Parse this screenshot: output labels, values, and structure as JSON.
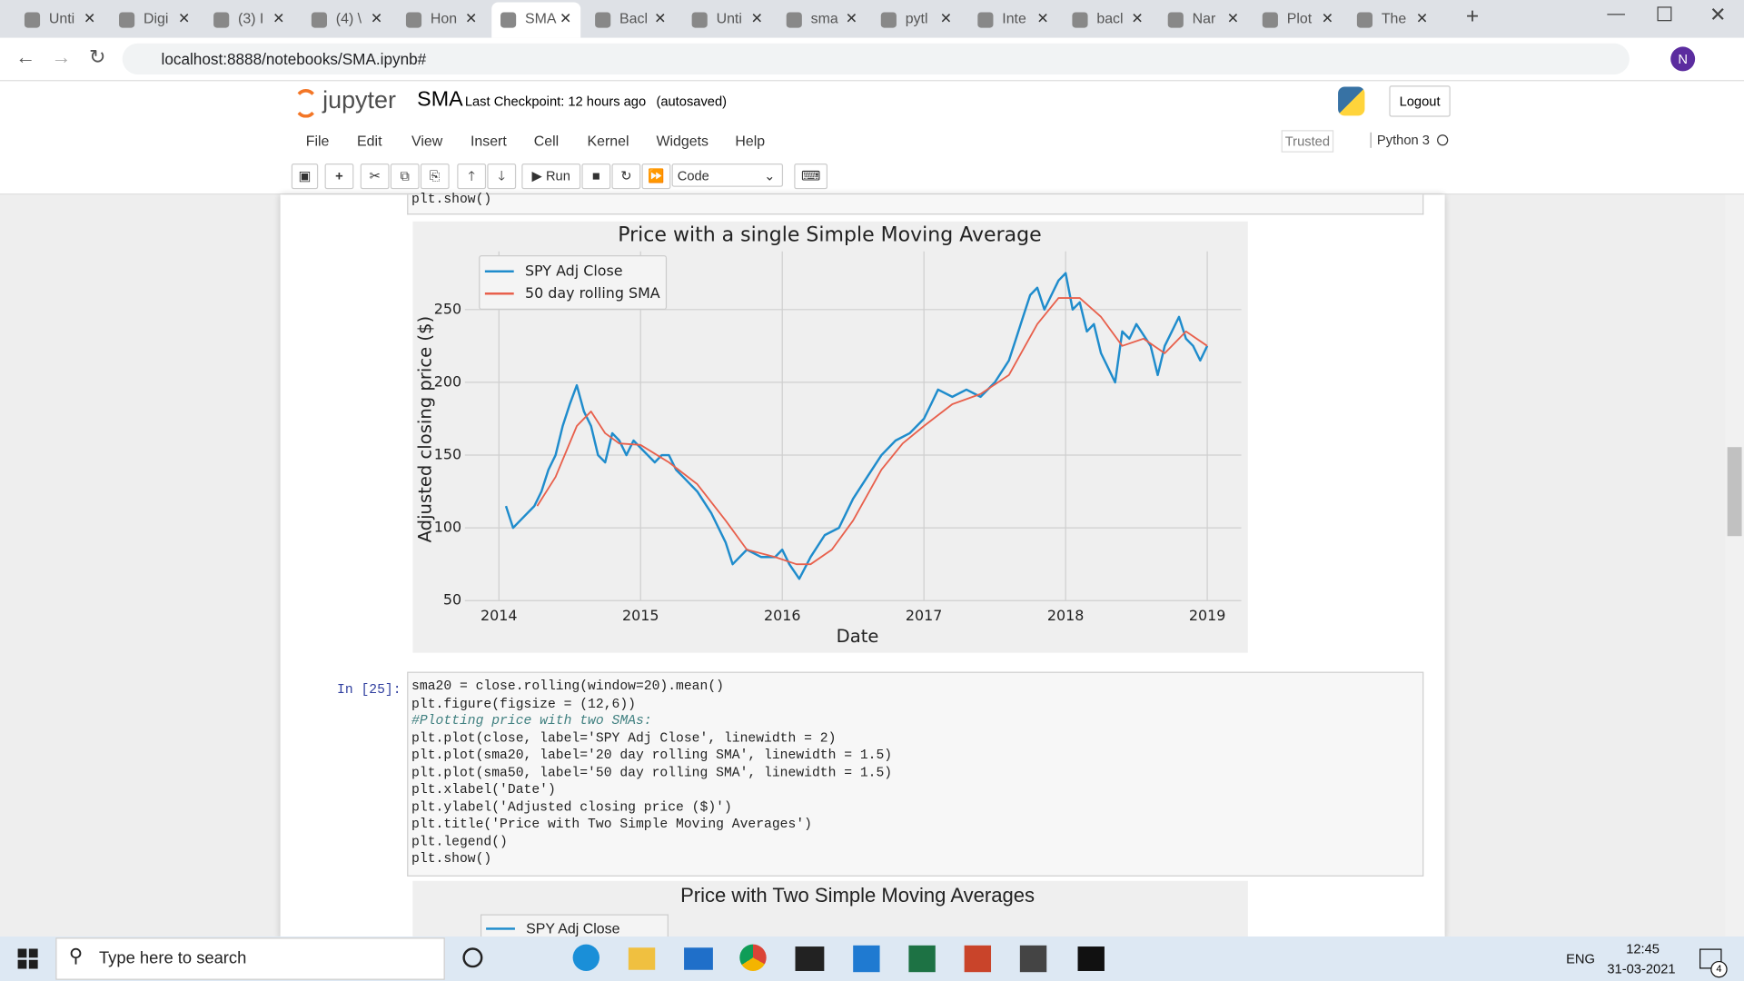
{
  "browser": {
    "tabs": [
      "Unti",
      "Digi",
      "(3) I",
      "(4) \\",
      "Hon",
      "SMA",
      "Bacl",
      "Unti",
      "sma",
      "pytl",
      "Inte",
      "bacl",
      "Nar",
      "Plot",
      "The"
    ],
    "url": "localhost:8888/notebooks/SMA.ipynb#"
  },
  "notebook": {
    "logo": "jupyter",
    "name": "SMA",
    "checkpoint": "Last Checkpoint: 12 hours ago",
    "autosaved": "(autosaved)",
    "logout": "Logout",
    "menu": [
      "File",
      "Edit",
      "View",
      "Insert",
      "Cell",
      "Kernel",
      "Widgets",
      "Help"
    ],
    "trusted": "Trusted",
    "kernel": "Python 3",
    "run": "Run",
    "cell_type": "Code"
  },
  "prev_cell_tail": "plt.show()",
  "chart_data": {
    "type": "line",
    "title": "Price with a single Simple Moving Average",
    "x_label": "Date",
    "y_label": "Adjusted closing price ($)",
    "xlim": [
      2013.76,
      2019.24
    ],
    "xticks": [
      2014,
      2015,
      2016,
      2017,
      2018,
      2019
    ],
    "ylim": [
      50,
      290
    ],
    "yticks": [
      50,
      100,
      150,
      200,
      250
    ],
    "grid": true,
    "legend": "upper left",
    "series": [
      {
        "name": "SPY Adj Close",
        "color": "#1f8ccc",
        "x": [
          2014.05,
          2014.1,
          2014.15,
          2014.25,
          2014.3,
          2014.35,
          2014.4,
          2014.45,
          2014.5,
          2014.55,
          2014.6,
          2014.65,
          2014.7,
          2014.75,
          2014.8,
          2014.85,
          2014.9,
          2014.95,
          2015.0,
          2015.1,
          2015.15,
          2015.2,
          2015.25,
          2015.3,
          2015.4,
          2015.5,
          2015.6,
          2015.65,
          2015.75,
          2015.85,
          2015.95,
          2016.0,
          2016.05,
          2016.12,
          2016.2,
          2016.3,
          2016.4,
          2016.5,
          2016.6,
          2016.7,
          2016.8,
          2016.9,
          2017.0,
          2017.05,
          2017.1,
          2017.2,
          2017.3,
          2017.4,
          2017.5,
          2017.6,
          2017.65,
          2017.7,
          2017.75,
          2017.8,
          2017.85,
          2017.9,
          2017.95,
          2018.0,
          2018.05,
          2018.1,
          2018.15,
          2018.2,
          2018.25,
          2018.3,
          2018.35,
          2018.4,
          2018.45,
          2018.5,
          2018.6,
          2018.65,
          2018.7,
          2018.75,
          2018.8,
          2018.85,
          2018.9,
          2018.95,
          2019.0
        ],
        "values": [
          115,
          100,
          105,
          115,
          125,
          140,
          150,
          170,
          185,
          198,
          180,
          170,
          150,
          145,
          165,
          160,
          150,
          160,
          155,
          145,
          150,
          150,
          140,
          135,
          125,
          110,
          90,
          75,
          85,
          80,
          80,
          85,
          75,
          65,
          80,
          95,
          100,
          120,
          135,
          150,
          160,
          165,
          175,
          185,
          195,
          190,
          195,
          190,
          200,
          215,
          230,
          245,
          260,
          265,
          250,
          260,
          270,
          275,
          250,
          255,
          235,
          240,
          220,
          210,
          200,
          235,
          230,
          240,
          225,
          205,
          225,
          235,
          245,
          230,
          225,
          215,
          225
        ]
      },
      {
        "name": "50 day rolling SMA",
        "color": "#e8604c",
        "x": [
          2014.27,
          2014.4,
          2014.55,
          2014.65,
          2014.75,
          2014.85,
          2015.0,
          2015.2,
          2015.4,
          2015.6,
          2015.75,
          2015.95,
          2016.1,
          2016.2,
          2016.35,
          2016.5,
          2016.7,
          2016.85,
          2017.0,
          2017.2,
          2017.4,
          2017.6,
          2017.8,
          2017.95,
          2018.1,
          2018.25,
          2018.4,
          2018.55,
          2018.7,
          2018.85,
          2019.0
        ],
        "values": [
          115,
          135,
          170,
          180,
          165,
          158,
          157,
          145,
          130,
          105,
          85,
          80,
          75,
          75,
          85,
          105,
          140,
          158,
          170,
          185,
          192,
          205,
          240,
          258,
          258,
          245,
          225,
          230,
          220,
          235,
          225
        ]
      }
    ]
  },
  "cell": {
    "prompt": "In [25]:",
    "code": [
      "sma20 = close.rolling(window=20).mean()",
      "plt.figure(figsize = (12,6))",
      "#Plotting price with two SMAs:",
      "plt.plot(close, label='SPY Adj Close', linewidth = 2)",
      "plt.plot(sma20, label='20 day rolling SMA', linewidth = 1.5)",
      "plt.plot(sma50, label='50 day rolling SMA', linewidth = 1.5)",
      "plt.xlabel('Date')",
      "plt.ylabel('Adjusted closing price ($)')",
      "plt.title('Price with Two Simple Moving Averages')",
      "plt.legend()",
      "plt.show()"
    ]
  },
  "second_chart": {
    "title": "Price with Two Simple Moving Averages",
    "legend": [
      "SPY Adj Close"
    ]
  },
  "taskbar": {
    "search": "Type here to search",
    "lang": "ENG",
    "time": "12:45",
    "date": "31-03-2021",
    "notifications": "4"
  }
}
